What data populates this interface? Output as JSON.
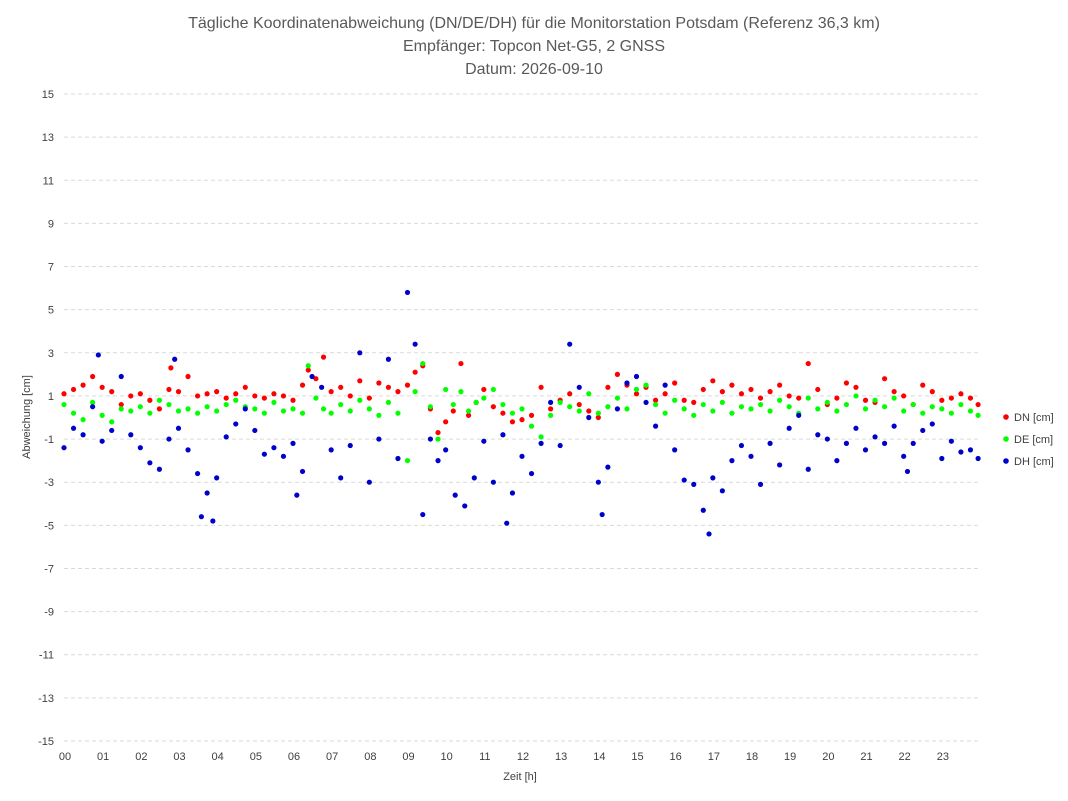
{
  "chart_data": {
    "type": "scatter",
    "title": "Tägliche Koordinatenabweichung (DN/DE/DH) für die Monitorstation Potsdam (Referenz 36,3 km)",
    "subtitle": "Empfänger: Topcon Net-G5, 2 GNSS",
    "date_line": "Datum: 2026-09-10",
    "xlabel": "Zeit [h]",
    "ylabel": "Abweichung [cm]",
    "xlim": [
      0,
      24
    ],
    "ylim": [
      -15,
      15
    ],
    "x_ticks": [
      0,
      1,
      2,
      3,
      4,
      5,
      6,
      7,
      8,
      9,
      10,
      11,
      12,
      13,
      14,
      15,
      16,
      17,
      18,
      19,
      20,
      21,
      22,
      23
    ],
    "x_tick_labels": [
      "00",
      "01",
      "02",
      "03",
      "04",
      "05",
      "06",
      "07",
      "08",
      "09",
      "10",
      "11",
      "12",
      "13",
      "14",
      "15",
      "16",
      "17",
      "18",
      "19",
      "20",
      "21",
      "22",
      "23"
    ],
    "y_ticks": [
      15,
      13,
      11,
      9,
      7,
      5,
      3,
      1,
      -1,
      -3,
      -5,
      -7,
      -9,
      -11,
      -13,
      -15
    ],
    "grid": "horizontal dashed",
    "legend_position": "right",
    "series": [
      {
        "name": "DN [cm]",
        "color": "#ff0000",
        "points": [
          [
            0.0,
            1.1
          ],
          [
            0.25,
            1.3
          ],
          [
            0.5,
            1.5
          ],
          [
            0.75,
            1.9
          ],
          [
            1.0,
            1.4
          ],
          [
            1.25,
            1.2
          ],
          [
            1.5,
            0.6
          ],
          [
            1.75,
            1.0
          ],
          [
            2.0,
            1.1
          ],
          [
            2.25,
            0.8
          ],
          [
            2.5,
            0.4
          ],
          [
            2.75,
            1.3
          ],
          [
            2.8,
            2.3
          ],
          [
            3.0,
            1.2
          ],
          [
            3.25,
            1.9
          ],
          [
            3.5,
            1.0
          ],
          [
            3.75,
            1.1
          ],
          [
            4.0,
            1.2
          ],
          [
            4.25,
            0.9
          ],
          [
            4.5,
            1.1
          ],
          [
            4.75,
            1.4
          ],
          [
            5.0,
            1.0
          ],
          [
            5.25,
            0.9
          ],
          [
            5.5,
            1.1
          ],
          [
            5.75,
            1.0
          ],
          [
            6.0,
            0.8
          ],
          [
            6.25,
            1.5
          ],
          [
            6.4,
            2.2
          ],
          [
            6.6,
            1.8
          ],
          [
            6.8,
            2.8
          ],
          [
            7.0,
            1.2
          ],
          [
            7.25,
            1.4
          ],
          [
            7.5,
            1.0
          ],
          [
            7.75,
            1.7
          ],
          [
            8.0,
            0.9
          ],
          [
            8.25,
            1.6
          ],
          [
            8.5,
            1.4
          ],
          [
            8.75,
            1.2
          ],
          [
            9.0,
            1.5
          ],
          [
            9.2,
            2.1
          ],
          [
            9.4,
            2.4
          ],
          [
            9.6,
            0.4
          ],
          [
            9.8,
            -0.7
          ],
          [
            10.0,
            -0.2
          ],
          [
            10.2,
            0.3
          ],
          [
            10.4,
            2.5
          ],
          [
            10.6,
            0.1
          ],
          [
            10.8,
            0.7
          ],
          [
            11.0,
            1.3
          ],
          [
            11.25,
            0.5
          ],
          [
            11.5,
            0.2
          ],
          [
            11.75,
            -0.2
          ],
          [
            12.0,
            -0.1
          ],
          [
            12.25,
            0.1
          ],
          [
            12.5,
            1.4
          ],
          [
            12.75,
            0.4
          ],
          [
            13.0,
            0.8
          ],
          [
            13.25,
            1.1
          ],
          [
            13.5,
            0.6
          ],
          [
            13.75,
            0.3
          ],
          [
            14.0,
            0.0
          ],
          [
            14.25,
            1.4
          ],
          [
            14.5,
            2.0
          ],
          [
            14.75,
            1.5
          ],
          [
            15.0,
            1.1
          ],
          [
            15.25,
            1.4
          ],
          [
            15.5,
            0.8
          ],
          [
            15.75,
            1.1
          ],
          [
            16.0,
            1.6
          ],
          [
            16.25,
            0.8
          ],
          [
            16.5,
            0.7
          ],
          [
            16.75,
            1.3
          ],
          [
            17.0,
            1.7
          ],
          [
            17.25,
            1.2
          ],
          [
            17.5,
            1.5
          ],
          [
            17.75,
            1.1
          ],
          [
            18.0,
            1.3
          ],
          [
            18.25,
            0.9
          ],
          [
            18.5,
            1.2
          ],
          [
            18.75,
            1.5
          ],
          [
            19.0,
            1.0
          ],
          [
            19.25,
            0.9
          ],
          [
            19.5,
            2.5
          ],
          [
            19.75,
            1.3
          ],
          [
            20.0,
            0.6
          ],
          [
            20.25,
            0.9
          ],
          [
            20.5,
            1.6
          ],
          [
            20.75,
            1.4
          ],
          [
            21.0,
            0.8
          ],
          [
            21.25,
            0.7
          ],
          [
            21.5,
            1.8
          ],
          [
            21.75,
            1.2
          ],
          [
            22.0,
            1.0
          ],
          [
            22.25,
            0.6
          ],
          [
            22.5,
            1.5
          ],
          [
            22.75,
            1.2
          ],
          [
            23.0,
            0.8
          ],
          [
            23.25,
            0.9
          ],
          [
            23.5,
            1.1
          ],
          [
            23.75,
            0.9
          ],
          [
            23.95,
            0.6
          ]
        ]
      },
      {
        "name": "DE [cm]",
        "color": "#00ff00",
        "points": [
          [
            0.0,
            0.6
          ],
          [
            0.25,
            0.2
          ],
          [
            0.5,
            -0.1
          ],
          [
            0.75,
            0.7
          ],
          [
            1.0,
            0.1
          ],
          [
            1.25,
            -0.2
          ],
          [
            1.5,
            0.4
          ],
          [
            1.75,
            0.3
          ],
          [
            2.0,
            0.5
          ],
          [
            2.25,
            0.2
          ],
          [
            2.5,
            0.8
          ],
          [
            2.75,
            0.6
          ],
          [
            3.0,
            0.3
          ],
          [
            3.25,
            0.4
          ],
          [
            3.5,
            0.2
          ],
          [
            3.75,
            0.5
          ],
          [
            4.0,
            0.3
          ],
          [
            4.25,
            0.6
          ],
          [
            4.5,
            0.8
          ],
          [
            4.75,
            0.5
          ],
          [
            5.0,
            0.4
          ],
          [
            5.25,
            0.2
          ],
          [
            5.5,
            0.7
          ],
          [
            5.75,
            0.3
          ],
          [
            6.0,
            0.4
          ],
          [
            6.25,
            0.2
          ],
          [
            6.4,
            2.4
          ],
          [
            6.6,
            0.9
          ],
          [
            6.8,
            0.4
          ],
          [
            7.0,
            0.2
          ],
          [
            7.25,
            0.6
          ],
          [
            7.5,
            0.3
          ],
          [
            7.75,
            0.8
          ],
          [
            8.0,
            0.4
          ],
          [
            8.25,
            0.1
          ],
          [
            8.5,
            0.7
          ],
          [
            8.75,
            0.2
          ],
          [
            9.0,
            -2.0
          ],
          [
            9.2,
            1.2
          ],
          [
            9.4,
            2.5
          ],
          [
            9.6,
            0.5
          ],
          [
            9.8,
            -1.0
          ],
          [
            10.0,
            1.3
          ],
          [
            10.2,
            0.6
          ],
          [
            10.4,
            1.2
          ],
          [
            10.6,
            0.3
          ],
          [
            10.8,
            0.7
          ],
          [
            11.0,
            0.9
          ],
          [
            11.25,
            1.3
          ],
          [
            11.5,
            0.6
          ],
          [
            11.75,
            0.2
          ],
          [
            12.0,
            0.4
          ],
          [
            12.25,
            -0.4
          ],
          [
            12.5,
            -0.9
          ],
          [
            12.75,
            0.1
          ],
          [
            13.0,
            0.7
          ],
          [
            13.25,
            0.5
          ],
          [
            13.5,
            0.3
          ],
          [
            13.75,
            1.1
          ],
          [
            14.0,
            0.2
          ],
          [
            14.25,
            0.5
          ],
          [
            14.5,
            0.9
          ],
          [
            14.75,
            0.4
          ],
          [
            15.0,
            1.3
          ],
          [
            15.25,
            1.5
          ],
          [
            15.5,
            0.6
          ],
          [
            15.75,
            0.2
          ],
          [
            16.0,
            0.8
          ],
          [
            16.25,
            0.4
          ],
          [
            16.5,
            0.1
          ],
          [
            16.75,
            0.6
          ],
          [
            17.0,
            0.3
          ],
          [
            17.25,
            0.7
          ],
          [
            17.5,
            0.2
          ],
          [
            17.75,
            0.5
          ],
          [
            18.0,
            0.4
          ],
          [
            18.25,
            0.6
          ],
          [
            18.5,
            0.3
          ],
          [
            18.75,
            0.8
          ],
          [
            19.0,
            0.5
          ],
          [
            19.25,
            0.2
          ],
          [
            19.5,
            0.9
          ],
          [
            19.75,
            0.4
          ],
          [
            20.0,
            0.7
          ],
          [
            20.25,
            0.3
          ],
          [
            20.5,
            0.6
          ],
          [
            20.75,
            1.0
          ],
          [
            21.0,
            0.4
          ],
          [
            21.25,
            0.8
          ],
          [
            21.5,
            0.5
          ],
          [
            21.75,
            0.9
          ],
          [
            22.0,
            0.3
          ],
          [
            22.25,
            0.6
          ],
          [
            22.5,
            0.2
          ],
          [
            22.75,
            0.5
          ],
          [
            23.0,
            0.4
          ],
          [
            23.25,
            0.2
          ],
          [
            23.5,
            0.6
          ],
          [
            23.75,
            0.3
          ],
          [
            23.95,
            0.1
          ]
        ]
      },
      {
        "name": "DH [cm]",
        "color": "#0000cc",
        "points": [
          [
            0.0,
            -1.4
          ],
          [
            0.25,
            -0.5
          ],
          [
            0.5,
            -0.8
          ],
          [
            0.75,
            0.5
          ],
          [
            0.9,
            2.9
          ],
          [
            1.0,
            -1.1
          ],
          [
            1.25,
            -0.6
          ],
          [
            1.5,
            1.9
          ],
          [
            1.75,
            -0.8
          ],
          [
            2.0,
            -1.4
          ],
          [
            2.25,
            -2.1
          ],
          [
            2.5,
            -2.4
          ],
          [
            2.75,
            -1.0
          ],
          [
            2.9,
            2.7
          ],
          [
            3.0,
            -0.5
          ],
          [
            3.25,
            -1.5
          ],
          [
            3.5,
            -2.6
          ],
          [
            3.6,
            -4.6
          ],
          [
            3.75,
            -3.5
          ],
          [
            3.9,
            -4.8
          ],
          [
            4.0,
            -2.8
          ],
          [
            4.25,
            -0.9
          ],
          [
            4.5,
            -0.3
          ],
          [
            4.75,
            0.4
          ],
          [
            5.0,
            -0.6
          ],
          [
            5.25,
            -1.7
          ],
          [
            5.5,
            -1.4
          ],
          [
            5.75,
            -1.8
          ],
          [
            6.0,
            -1.2
          ],
          [
            6.1,
            -3.6
          ],
          [
            6.25,
            -2.5
          ],
          [
            6.5,
            1.9
          ],
          [
            6.75,
            1.4
          ],
          [
            7.0,
            -1.5
          ],
          [
            7.25,
            -2.8
          ],
          [
            7.5,
            -1.3
          ],
          [
            7.75,
            3.0
          ],
          [
            8.0,
            -3.0
          ],
          [
            8.25,
            -1.0
          ],
          [
            8.5,
            2.7
          ],
          [
            8.75,
            -1.9
          ],
          [
            9.0,
            5.8
          ],
          [
            9.2,
            3.4
          ],
          [
            9.4,
            -4.5
          ],
          [
            9.6,
            -1.0
          ],
          [
            9.8,
            -2.0
          ],
          [
            10.0,
            -1.5
          ],
          [
            10.25,
            -3.6
          ],
          [
            10.5,
            -4.1
          ],
          [
            10.75,
            -2.8
          ],
          [
            11.0,
            -1.1
          ],
          [
            11.25,
            -3.0
          ],
          [
            11.5,
            -0.8
          ],
          [
            11.6,
            -4.9
          ],
          [
            11.75,
            -3.5
          ],
          [
            12.0,
            -1.8
          ],
          [
            12.25,
            -2.6
          ],
          [
            12.5,
            -1.2
          ],
          [
            12.75,
            0.7
          ],
          [
            13.0,
            -1.3
          ],
          [
            13.25,
            3.4
          ],
          [
            13.5,
            1.4
          ],
          [
            13.75,
            0.0
          ],
          [
            14.0,
            -3.0
          ],
          [
            14.1,
            -4.5
          ],
          [
            14.25,
            -2.3
          ],
          [
            14.5,
            0.4
          ],
          [
            14.75,
            1.6
          ],
          [
            15.0,
            1.9
          ],
          [
            15.25,
            0.7
          ],
          [
            15.5,
            -0.4
          ],
          [
            15.75,
            1.5
          ],
          [
            16.0,
            -1.5
          ],
          [
            16.25,
            -2.9
          ],
          [
            16.5,
            -3.1
          ],
          [
            16.75,
            -4.3
          ],
          [
            16.9,
            -5.4
          ],
          [
            17.0,
            -2.8
          ],
          [
            17.25,
            -3.4
          ],
          [
            17.5,
            -2.0
          ],
          [
            17.75,
            -1.3
          ],
          [
            18.0,
            -1.8
          ],
          [
            18.25,
            -3.1
          ],
          [
            18.5,
            -1.2
          ],
          [
            18.75,
            -2.2
          ],
          [
            19.0,
            -0.5
          ],
          [
            19.25,
            0.1
          ],
          [
            19.5,
            -2.4
          ],
          [
            19.75,
            -0.8
          ],
          [
            20.0,
            -1.0
          ],
          [
            20.25,
            -2.0
          ],
          [
            20.5,
            -1.2
          ],
          [
            20.75,
            -0.5
          ],
          [
            21.0,
            -1.5
          ],
          [
            21.25,
            -0.9
          ],
          [
            21.5,
            -1.2
          ],
          [
            21.75,
            -0.4
          ],
          [
            22.0,
            -1.8
          ],
          [
            22.1,
            -2.5
          ],
          [
            22.25,
            -1.2
          ],
          [
            22.5,
            -0.6
          ],
          [
            22.75,
            -0.3
          ],
          [
            23.0,
            -1.9
          ],
          [
            23.25,
            -1.1
          ],
          [
            23.5,
            -1.6
          ],
          [
            23.75,
            -1.5
          ],
          [
            23.95,
            -1.9
          ]
        ]
      }
    ]
  }
}
